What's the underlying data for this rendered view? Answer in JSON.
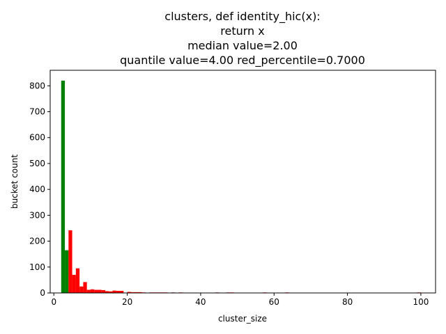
{
  "chart_data": {
    "type": "bar",
    "title_lines": [
      "clusters, def identity_hic(x):",
      "return x",
      "median value=2.00",
      "quantile value=4.00  red_percentile=0.7000"
    ],
    "xlabel": "cluster_size",
    "ylabel": "bucket count",
    "xlim": [
      -1.0,
      104.0
    ],
    "ylim": [
      0,
      860
    ],
    "xticks": [
      0,
      20,
      40,
      60,
      80,
      100
    ],
    "yticks": [
      0,
      100,
      200,
      300,
      400,
      500,
      600,
      700,
      800
    ],
    "bin_width": 1.0,
    "colors": {
      "below_quantile": "#008000",
      "above_quantile": "#ff0000"
    },
    "series": [
      {
        "color_key": "below_quantile",
        "bins": [
          [
            2,
            820
          ],
          [
            3,
            165
          ]
        ]
      },
      {
        "color_key": "above_quantile",
        "bins": [
          [
            4,
            242
          ],
          [
            5,
            70
          ],
          [
            6,
            95
          ],
          [
            7,
            25
          ],
          [
            8,
            42
          ],
          [
            9,
            12
          ],
          [
            10,
            14
          ],
          [
            11,
            12
          ],
          [
            12,
            12
          ],
          [
            13,
            11
          ],
          [
            14,
            7
          ],
          [
            15,
            6
          ],
          [
            16,
            9
          ],
          [
            17,
            8
          ],
          [
            18,
            8
          ],
          [
            20,
            4
          ],
          [
            21,
            3
          ],
          [
            22,
            3
          ],
          [
            23,
            3
          ],
          [
            24,
            2
          ],
          [
            26,
            2
          ],
          [
            27,
            2
          ],
          [
            28,
            2
          ],
          [
            29,
            2
          ],
          [
            30,
            2
          ],
          [
            32,
            2
          ],
          [
            34,
            2
          ],
          [
            44,
            2
          ],
          [
            47,
            2
          ],
          [
            48,
            2
          ],
          [
            57,
            2
          ],
          [
            63,
            2
          ],
          [
            99,
            2
          ]
        ]
      }
    ]
  }
}
